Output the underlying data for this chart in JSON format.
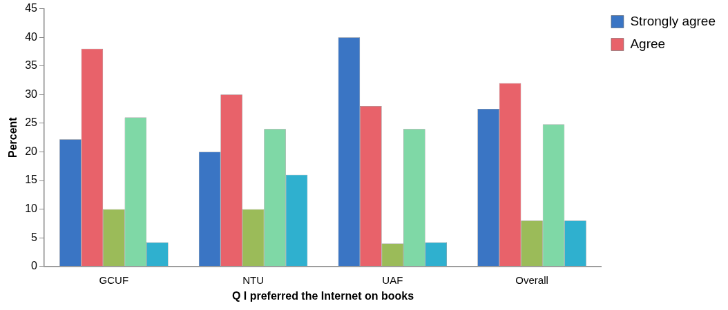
{
  "chart_data": {
    "type": "bar",
    "xlabel": "Q I preferred the Internet on books",
    "ylabel": "Percent",
    "categories": [
      "GCUF",
      "NTU",
      "UAF",
      "Overall"
    ],
    "series": [
      {
        "name": "Strongly agree",
        "color": "#3a75c4",
        "values": [
          22.2,
          20,
          40,
          27.5
        ]
      },
      {
        "name": "Agree",
        "color": "#e8626a",
        "values": [
          38,
          30,
          28,
          32
        ]
      },
      {
        "color": "#9bbb59",
        "values": [
          10,
          10,
          4,
          8
        ]
      },
      {
        "color": "#7fd8a6",
        "values": [
          26,
          24,
          24,
          24.8
        ]
      },
      {
        "color": "#2fb0cf",
        "values": [
          4.2,
          16,
          4.2,
          8
        ]
      }
    ],
    "ylim": [
      0,
      45
    ],
    "yticks": [
      0,
      5,
      10,
      15,
      20,
      25,
      30,
      35,
      40,
      45
    ],
    "grid": false,
    "legend": "top right"
  }
}
